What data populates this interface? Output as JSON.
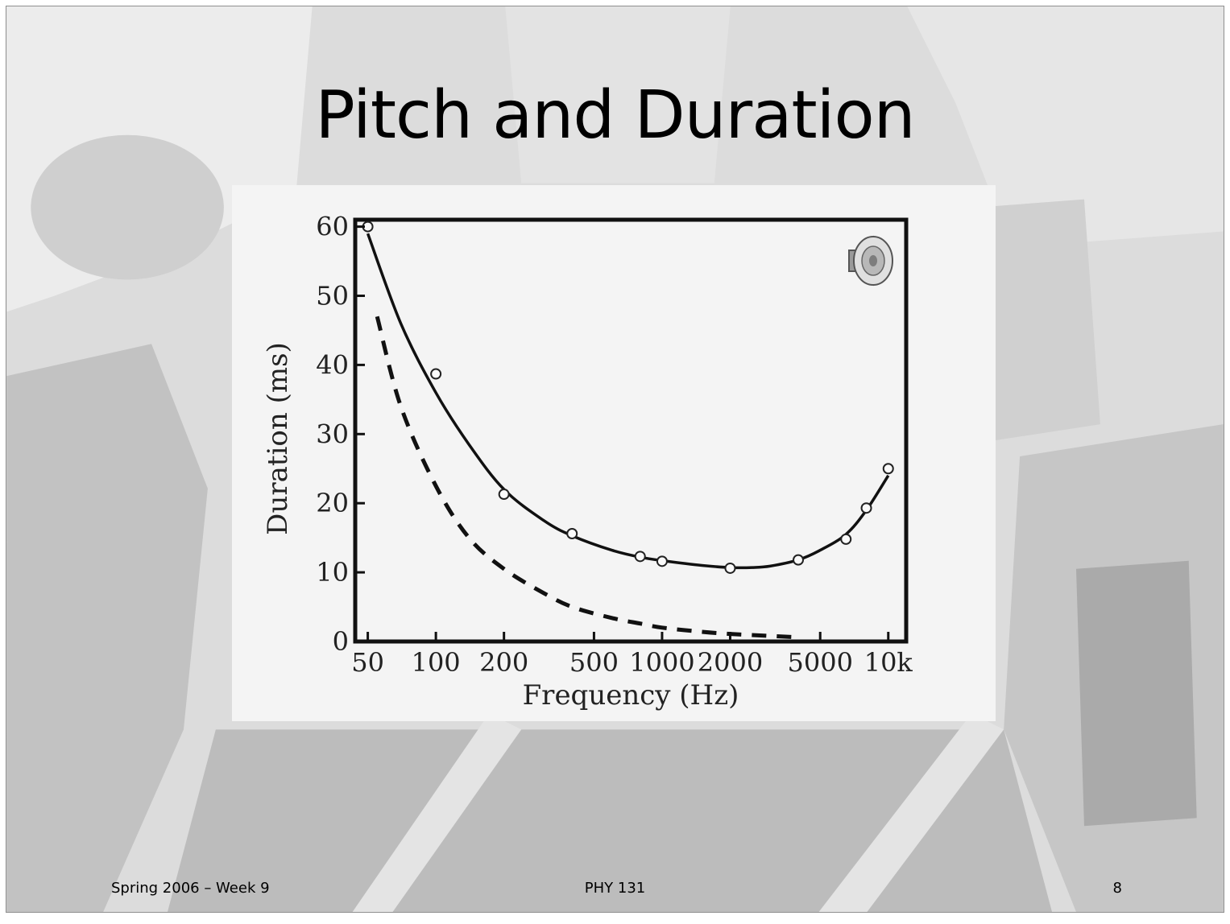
{
  "slide": {
    "title": "Pitch and Duration",
    "footer_left": "Spring 2006 – Week 9",
    "footer_center": "PHY 131",
    "footer_right": "8"
  },
  "icons": {
    "audio": "speaker-icon"
  },
  "colors": {
    "ink": "#111111",
    "panel": "#f4f4f4"
  },
  "chart_data": {
    "type": "line",
    "title": "",
    "xlabel": "Frequency (Hz)",
    "ylabel": "Duration (ms)",
    "x_scale": "log",
    "xlim": [
      44,
      12000
    ],
    "ylim": [
      0,
      61
    ],
    "x_ticks": [
      50,
      100,
      200,
      500,
      1000,
      2000,
      5000,
      10000
    ],
    "x_tick_labels": [
      "50",
      "100",
      "200",
      "500",
      "1000",
      "2000",
      "5000",
      "10k"
    ],
    "y_ticks": [
      0,
      10,
      20,
      30,
      40,
      50,
      60
    ],
    "y_tick_labels": [
      "0",
      "10",
      "20",
      "30",
      "40",
      "50",
      "60"
    ],
    "grid": false,
    "legend": "none",
    "series": [
      {
        "style": "solid",
        "x": [
          50,
          70,
          100,
          140,
          200,
          300,
          400,
          600,
          800,
          1000,
          1500,
          2000,
          2500,
          3000,
          4000,
          5000,
          6500,
          8000,
          10000
        ],
        "y": [
          59,
          46,
          36,
          28.5,
          22,
          17.5,
          15.3,
          13.2,
          12.2,
          11.7,
          11,
          10.7,
          10.7,
          10.9,
          11.8,
          13.2,
          15.5,
          19,
          24
        ]
      },
      {
        "style": "dashed",
        "x": [
          55,
          70,
          100,
          140,
          200,
          300,
          400,
          600,
          800,
          1000,
          1500,
          2000,
          3000,
          4000
        ],
        "y": [
          47,
          34,
          22.5,
          15,
          10.5,
          7,
          5,
          3.4,
          2.6,
          2,
          1.4,
          1.1,
          0.8,
          0.6
        ]
      },
      {
        "style": "markers",
        "x": [
          50,
          100,
          200,
          400,
          800,
          1000,
          2000,
          4000,
          6500,
          8000,
          10000
        ],
        "y": [
          60,
          38.7,
          21.3,
          15.6,
          12.3,
          11.6,
          10.6,
          11.8,
          14.8,
          19.3,
          25
        ]
      }
    ]
  }
}
